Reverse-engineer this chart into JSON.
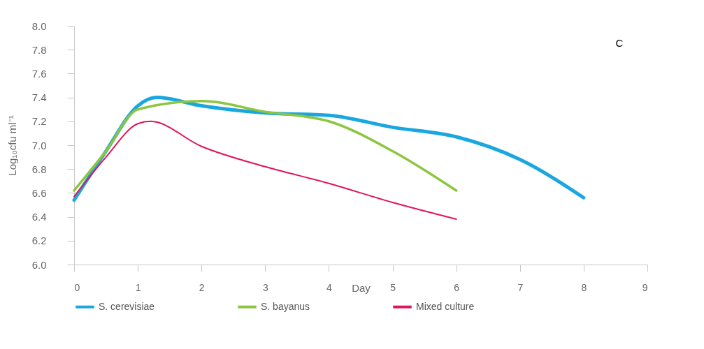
{
  "chart_data": {
    "type": "line",
    "xlabel": "Day",
    "ylabel": "Log₁₀cfu ml⁻¹",
    "annotations": [
      "C"
    ],
    "xlim": [
      0,
      9
    ],
    "xticks": [
      0,
      1,
      2,
      3,
      4,
      5,
      6,
      7,
      8,
      9
    ],
    "ylim": [
      6.0,
      8.0
    ],
    "yticks": [
      {
        "value": 6.0,
        "label": "6.0"
      },
      {
        "value": 6.2,
        "label": "6.2"
      },
      {
        "value": 6.4,
        "label": "6.4"
      },
      {
        "value": 6.6,
        "label": "6.6"
      },
      {
        "value": 6.8,
        "label": "6.8"
      },
      {
        "value": 7.0,
        "label": "7.0"
      },
      {
        "value": 7.2,
        "label": "7.2"
      },
      {
        "value": 7.4,
        "label": "7.4"
      },
      {
        "value": 7.6,
        "label": "7.6"
      },
      {
        "value": 7.8,
        "label": "7.8"
      },
      {
        "value": 8.0,
        "label": "8.0"
      }
    ],
    "grid": false,
    "legend": "bottom",
    "marker": "none",
    "line_style": "solid",
    "series": [
      {
        "name": "S. cerevisiae",
        "color": "#1aa7e0",
        "x": [
          0,
          0.5,
          1,
          1.3,
          2,
          3,
          4,
          5,
          6,
          7,
          8
        ],
        "values": [
          6.54,
          6.95,
          7.33,
          7.4,
          7.33,
          7.27,
          7.25,
          7.15,
          7.07,
          6.88,
          6.56
        ]
      },
      {
        "name": "S. bayanus",
        "color": "#8cc63f",
        "x": [
          0,
          0.5,
          1,
          2,
          3,
          4,
          5,
          6
        ],
        "values": [
          6.62,
          6.95,
          7.3,
          7.37,
          7.28,
          7.2,
          6.95,
          6.62
        ]
      },
      {
        "name": "Mixed culture",
        "color": "#e0145a",
        "x": [
          0,
          0.5,
          1,
          1.2,
          2,
          3,
          4,
          5,
          6
        ],
        "values": [
          6.57,
          6.9,
          7.18,
          7.2,
          6.99,
          6.82,
          6.68,
          6.52,
          6.38
        ]
      }
    ]
  }
}
